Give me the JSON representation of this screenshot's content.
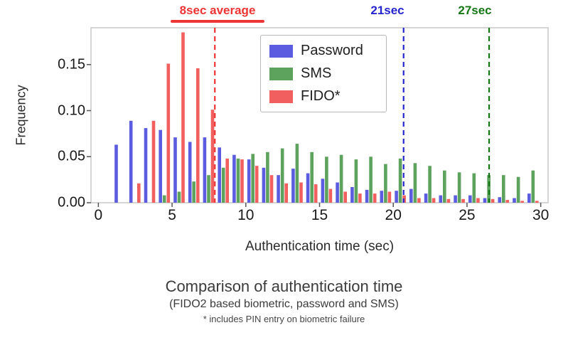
{
  "chart_data": {
    "type": "bar",
    "title": "Comparison of authentication time",
    "subtitle": "(FIDO2 based biometric, password and SMS)",
    "footnote": "* includes PIN entry on biometric failure",
    "xlabel": "Authentication time (sec)",
    "ylabel": "Frequency",
    "xlim": [
      -0.5,
      30.5
    ],
    "ylim": [
      0,
      0.19
    ],
    "xticks": [
      0,
      5,
      10,
      15,
      20,
      25,
      30
    ],
    "yticks": [
      0,
      0.05,
      0.1,
      0.15
    ],
    "ytick_labels": [
      "0.00",
      "0.05",
      "0.10",
      "0.15"
    ],
    "grid": false,
    "legend_position": "upper center",
    "bin_width": 1,
    "bin_centers": [
      1.5,
      2.5,
      3.5,
      4.5,
      5.5,
      6.5,
      7.5,
      8.5,
      9.5,
      10.5,
      11.5,
      12.5,
      13.5,
      14.5,
      15.5,
      16.5,
      17.5,
      18.5,
      19.5,
      20.5,
      21.5,
      22.5,
      23.5,
      24.5,
      25.5,
      26.5,
      27.5,
      28.5,
      29.5
    ],
    "series": [
      {
        "name": "Password",
        "color": "#5c5ce0",
        "values": [
          0.063,
          0.089,
          0.081,
          0.079,
          0.071,
          0.066,
          0.071,
          0.06,
          0.052,
          0.047,
          0.038,
          0.03,
          0.037,
          0.032,
          0.026,
          0.022,
          0.017,
          0.014,
          0.013,
          0.013,
          0.015,
          0.01,
          0.008,
          0.008,
          0.008,
          0.005,
          0.006,
          0.005,
          0.01
        ],
        "avg_line": {
          "x": 20.7,
          "label": "21sec",
          "color": "#2626cf"
        }
      },
      {
        "name": "SMS",
        "color": "#5da25d",
        "values": [
          0,
          0,
          0,
          0.008,
          0.012,
          0.023,
          0.03,
          0.038,
          0.048,
          0.053,
          0.055,
          0.059,
          0.064,
          0.055,
          0.05,
          0.052,
          0.047,
          0.05,
          0.042,
          0.048,
          0.043,
          0.04,
          0.035,
          0.033,
          0.032,
          0.03,
          0.03,
          0.028,
          0.035
        ],
        "avg_line": {
          "x": 26.5,
          "label": "27sec",
          "color": "#157815"
        }
      },
      {
        "name": "FIDO*",
        "color": "#f25f5f",
        "values": [
          0,
          0.021,
          0.089,
          0.151,
          0.185,
          0.146,
          0.101,
          0.048,
          0.047,
          0.04,
          0.03,
          0.021,
          0.022,
          0.02,
          0.015,
          0.012,
          0.01,
          0.01,
          0.012,
          0.008,
          0.005,
          0.005,
          0.004,
          0.004,
          0.005,
          0.004,
          0.003,
          0.002,
          0.002
        ],
        "avg_line": {
          "x": 7.9,
          "label": "8sec average",
          "color": "#ee3434"
        }
      }
    ]
  }
}
